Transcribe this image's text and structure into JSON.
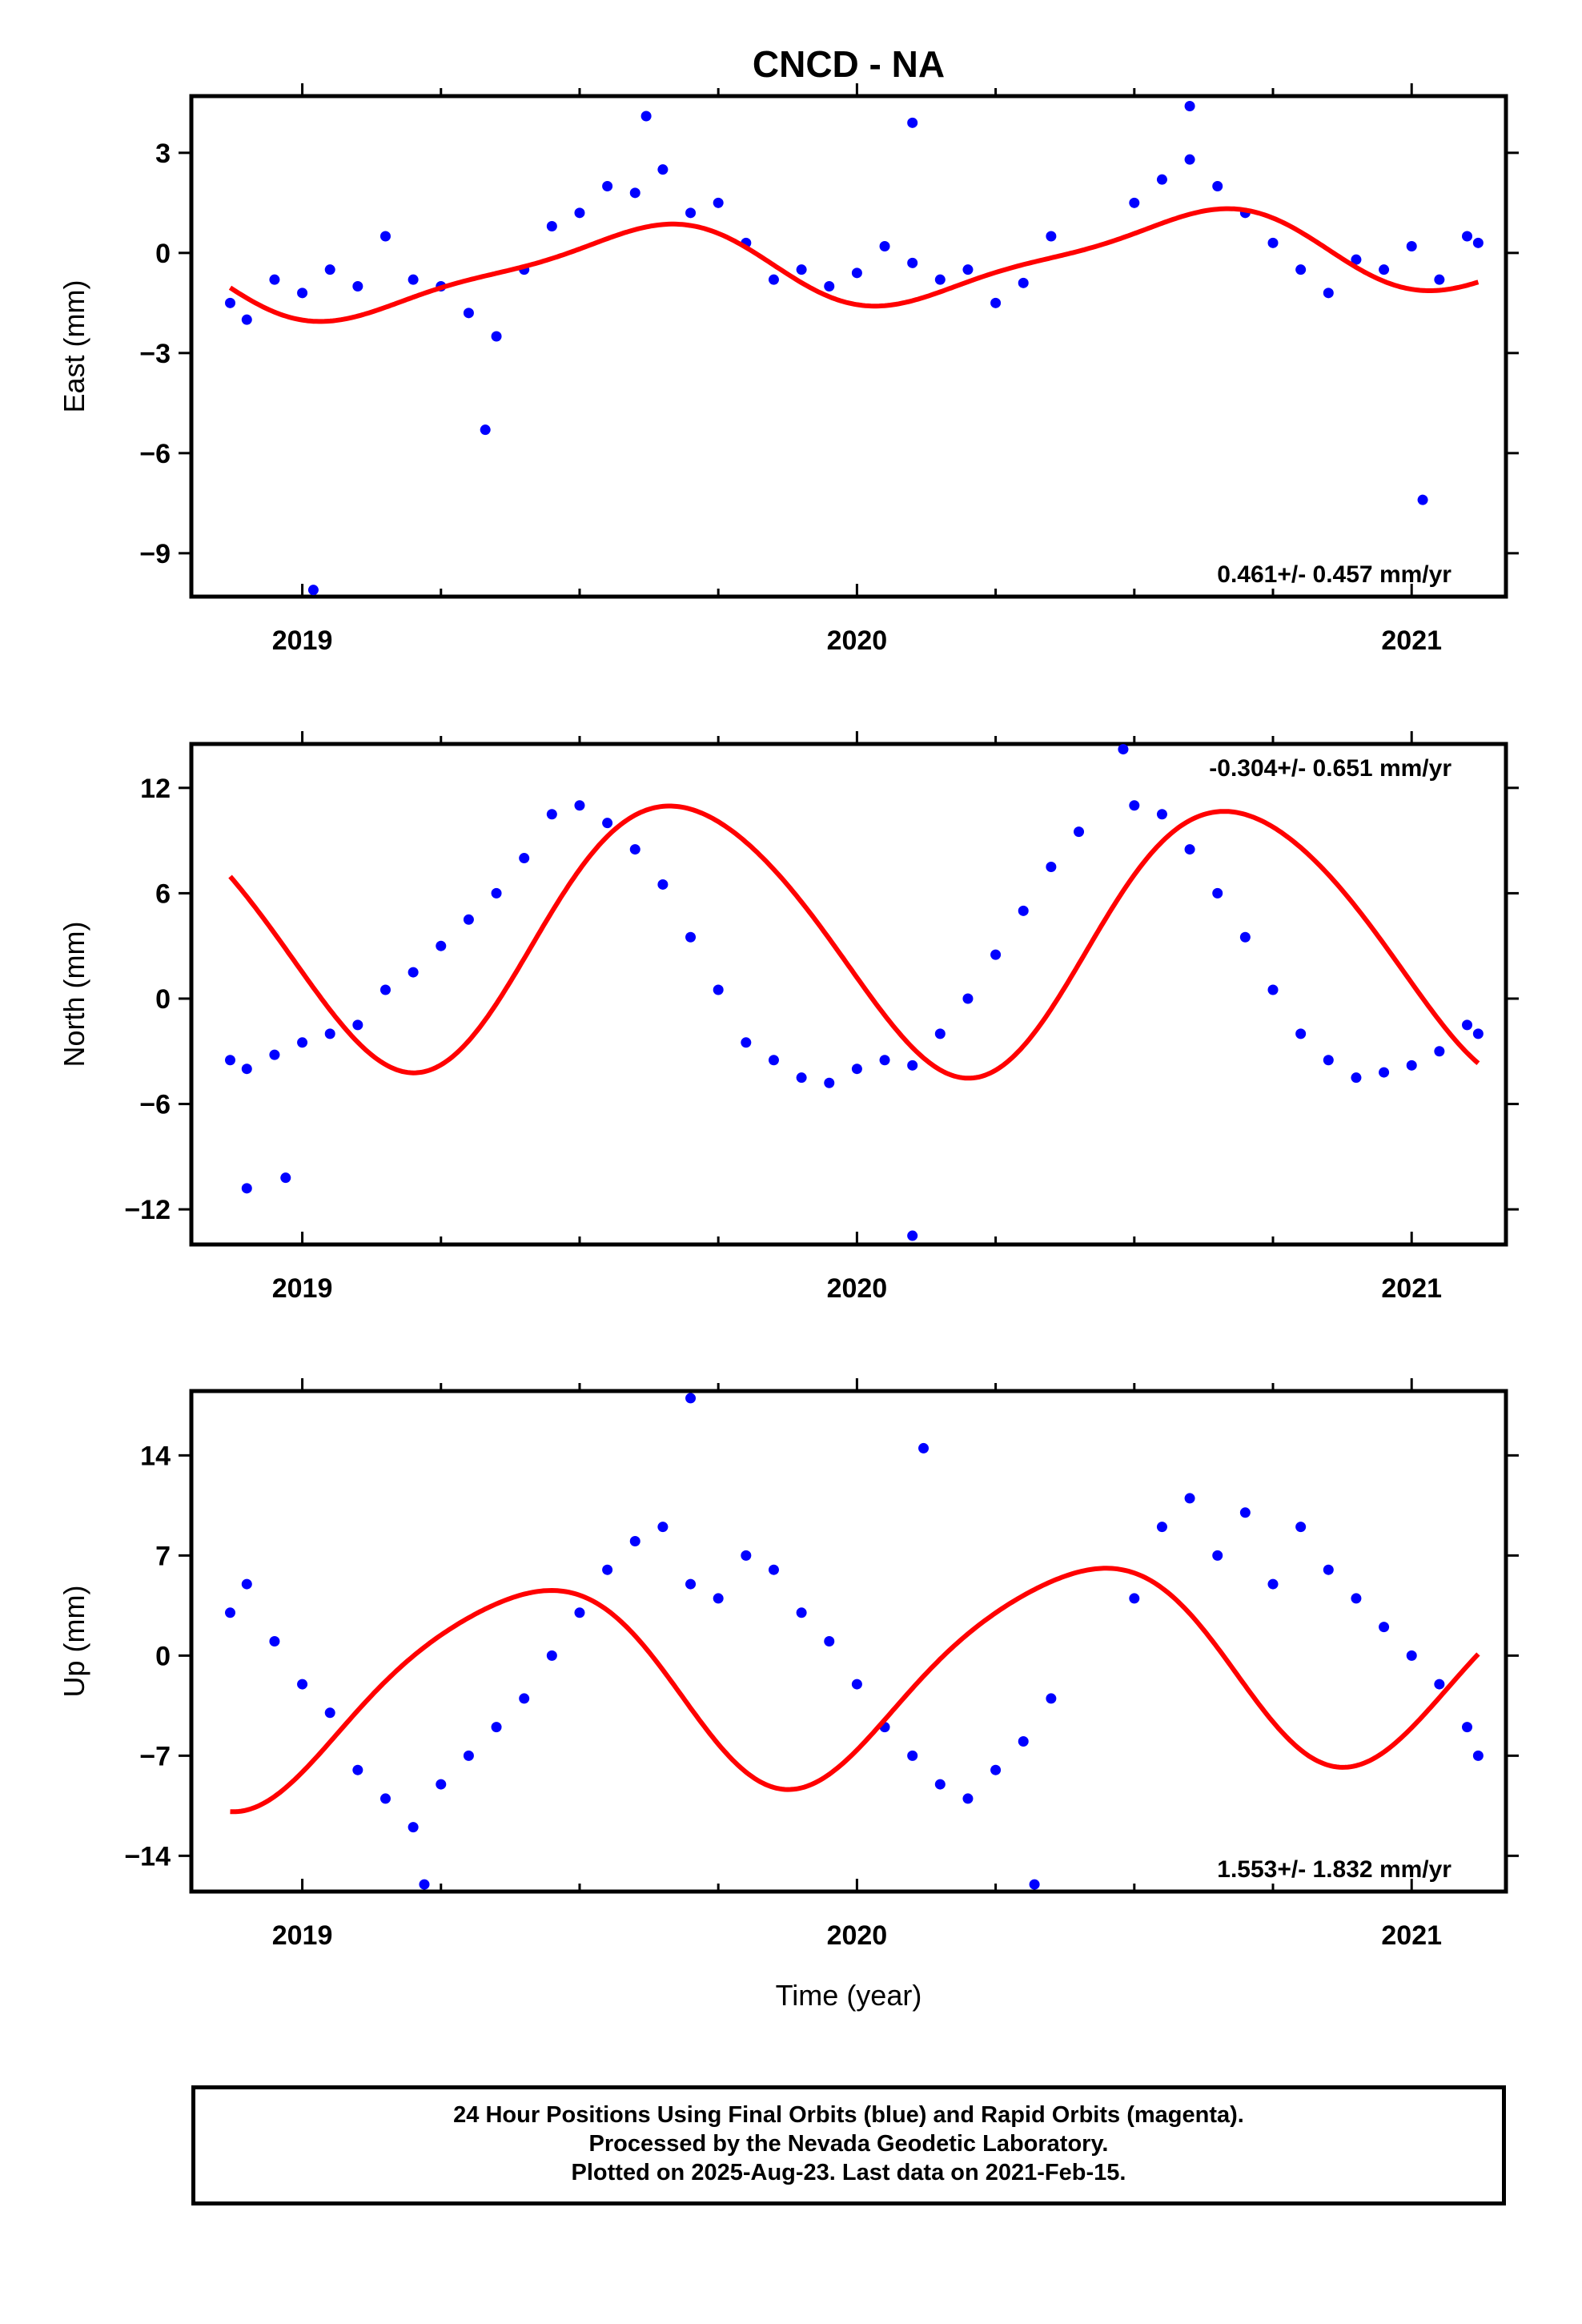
{
  "title": "CNCD - NA",
  "footer": {
    "line1": "24 Hour Positions Using Final Orbits (blue) and Rapid Orbits (magenta).",
    "line2": "Processed by the Nevada Geodetic Laboratory.",
    "line3": "Plotted on 2025-Aug-23. Last data on 2021-Feb-15."
  },
  "colors": {
    "points": "#0000ff",
    "fit": "#ff0000",
    "frame": "#000000"
  },
  "chart_data": [
    {
      "type": "scatter",
      "ylabel": "East (mm)",
      "xlabel": "",
      "xlim": [
        2018.8,
        2021.17
      ],
      "ylim": [
        -10.3,
        4.7
      ],
      "x_ticks": [
        2019,
        2020,
        2021
      ],
      "y_ticks": [
        3,
        0,
        -3,
        -6,
        -9
      ],
      "y_tick_labels": [
        "3",
        "0",
        "−3",
        "−6",
        "−9"
      ],
      "rate_label": "0.461+/- 0.457 mm/yr",
      "rate_position": "bottom-right",
      "fit": {
        "trend": 0.461,
        "offset": -0.3,
        "annual_cos": -0.95,
        "annual_sin": -0.7,
        "semiannual_cos": -0.3,
        "semiannual_sin": 0.1,
        "ref_year": 2020.0
      },
      "series": [
        {
          "x": [
            2018.87,
            2018.9,
            2018.95,
            2019.0,
            2019.05,
            2019.1,
            2019.15,
            2019.2,
            2019.25,
            2019.3,
            2019.35,
            2019.4,
            2019.45,
            2019.5,
            2019.55,
            2019.6,
            2019.65,
            2019.7,
            2019.75,
            2019.8,
            2019.85,
            2019.9,
            2019.95,
            2020.0,
            2020.05,
            2020.1,
            2020.15,
            2020.2,
            2020.25,
            2020.3,
            2020.35,
            2020.5,
            2020.55,
            2020.6,
            2020.65,
            2020.7,
            2020.75,
            2020.8,
            2020.85,
            2020.9,
            2020.95,
            2021.0,
            2021.05,
            2021.1,
            2021.12,
            2019.02,
            2019.33,
            2020.1,
            2019.62,
            2020.6,
            2021.02
          ],
          "y": [
            -1.5,
            -2.0,
            -0.8,
            -1.2,
            -0.5,
            -1.0,
            0.5,
            -0.8,
            -1.0,
            -1.8,
            -2.5,
            -0.5,
            0.8,
            1.2,
            2.0,
            1.8,
            2.5,
            1.2,
            1.5,
            0.3,
            -0.8,
            -0.5,
            -1.0,
            -0.6,
            0.2,
            -0.3,
            -0.8,
            -0.5,
            -1.5,
            -0.9,
            0.5,
            1.5,
            2.2,
            2.8,
            2.0,
            1.2,
            0.3,
            -0.5,
            -1.2,
            -0.2,
            -0.5,
            0.2,
            -0.8,
            0.5,
            0.3,
            -10.1,
            -5.3,
            3.9,
            4.1,
            4.4,
            -7.4
          ]
        }
      ]
    },
    {
      "type": "scatter",
      "ylabel": "North (mm)",
      "xlabel": "",
      "xlim": [
        2018.8,
        2021.17
      ],
      "ylim": [
        -14.0,
        14.5
      ],
      "x_ticks": [
        2019,
        2020,
        2021
      ],
      "y_ticks": [
        12,
        6,
        0,
        -6,
        -12
      ],
      "y_tick_labels": [
        "12",
        "6",
        "0",
        "−6",
        "−12"
      ],
      "rate_label": "-0.304+/- 0.651 mm/yr",
      "rate_position": "top-right",
      "fit": {
        "trend": -0.304,
        "offset": 3.6,
        "annual_cos": -3.0,
        "annual_sin": -7.0,
        "semiannual_cos": 0.6,
        "semiannual_sin": 0.0,
        "ref_year": 2020.0
      },
      "series": [
        {
          "x": [
            2018.87,
            2018.9,
            2018.95,
            2019.0,
            2019.05,
            2019.1,
            2019.15,
            2019.2,
            2019.25,
            2019.3,
            2019.35,
            2019.4,
            2019.45,
            2019.5,
            2019.55,
            2019.6,
            2019.65,
            2019.7,
            2019.75,
            2019.8,
            2019.85,
            2019.9,
            2019.95,
            2020.0,
            2020.05,
            2020.1,
            2020.15,
            2020.2,
            2020.25,
            2020.3,
            2020.35,
            2020.4,
            2020.5,
            2020.55,
            2020.6,
            2020.65,
            2020.7,
            2020.75,
            2020.8,
            2020.85,
            2020.9,
            2020.95,
            2021.0,
            2021.05,
            2021.1,
            2021.12,
            2018.9,
            2018.97,
            2020.1,
            2020.48
          ],
          "y": [
            -3.5,
            -4.0,
            -3.2,
            -2.5,
            -2.0,
            -1.5,
            0.5,
            1.5,
            3.0,
            4.5,
            6.0,
            8.0,
            10.5,
            11.0,
            10.0,
            8.5,
            6.5,
            3.5,
            0.5,
            -2.5,
            -3.5,
            -4.5,
            -4.8,
            -4.0,
            -3.5,
            -3.8,
            -2.0,
            0.0,
            2.5,
            5.0,
            7.5,
            9.5,
            11.0,
            10.5,
            8.5,
            6.0,
            3.5,
            0.5,
            -2.0,
            -3.5,
            -4.5,
            -4.2,
            -3.8,
            -3.0,
            -1.5,
            -2.0,
            -10.8,
            -10.2,
            -13.5,
            14.2
          ]
        }
      ]
    },
    {
      "type": "scatter",
      "ylabel": "Up (mm)",
      "xlabel": "Time (year)",
      "xlim": [
        2018.8,
        2021.17
      ],
      "ylim": [
        -16.5,
        18.5
      ],
      "x_ticks": [
        2019,
        2020,
        2021
      ],
      "y_ticks": [
        14,
        7,
        0,
        -7,
        -14
      ],
      "y_tick_labels": [
        "14",
        "7",
        "0",
        "−7",
        "−14"
      ],
      "rate_label": "1.553+/- 1.832 mm/yr",
      "rate_position": "bottom-right",
      "fit": {
        "trend": 1.553,
        "offset": -1.2,
        "annual_cos": -5.8,
        "annual_sin": 4.2,
        "semiannual_cos": 0.4,
        "semiannual_sin": 0.9,
        "ref_year": 2020.0
      },
      "series": [
        {
          "x": [
            2018.87,
            2018.9,
            2018.95,
            2019.0,
            2019.05,
            2019.1,
            2019.15,
            2019.2,
            2019.25,
            2019.3,
            2019.35,
            2019.4,
            2019.45,
            2019.5,
            2019.55,
            2019.6,
            2019.65,
            2019.7,
            2019.75,
            2019.8,
            2019.85,
            2019.9,
            2019.95,
            2020.0,
            2020.05,
            2020.1,
            2020.15,
            2020.2,
            2020.25,
            2020.3,
            2020.35,
            2020.5,
            2020.55,
            2020.6,
            2020.65,
            2020.7,
            2020.75,
            2020.8,
            2020.85,
            2020.9,
            2020.95,
            2021.0,
            2021.05,
            2021.1,
            2021.12,
            2019.7,
            2020.12,
            2020.32,
            2019.22
          ],
          "y": [
            3.0,
            5.0,
            1.0,
            -2.0,
            -4.0,
            -8.0,
            -10.0,
            -12.0,
            -9.0,
            -7.0,
            -5.0,
            -3.0,
            0.0,
            3.0,
            6.0,
            8.0,
            9.0,
            5.0,
            4.0,
            7.0,
            6.0,
            3.0,
            1.0,
            -2.0,
            -5.0,
            -7.0,
            -9.0,
            -10.0,
            -8.0,
            -6.0,
            -3.0,
            4.0,
            9.0,
            11.0,
            7.0,
            10.0,
            5.0,
            9.0,
            6.0,
            4.0,
            2.0,
            0.0,
            -2.0,
            -5.0,
            -7.0,
            18.0,
            14.5,
            -16.0,
            -16.0
          ]
        }
      ]
    }
  ]
}
